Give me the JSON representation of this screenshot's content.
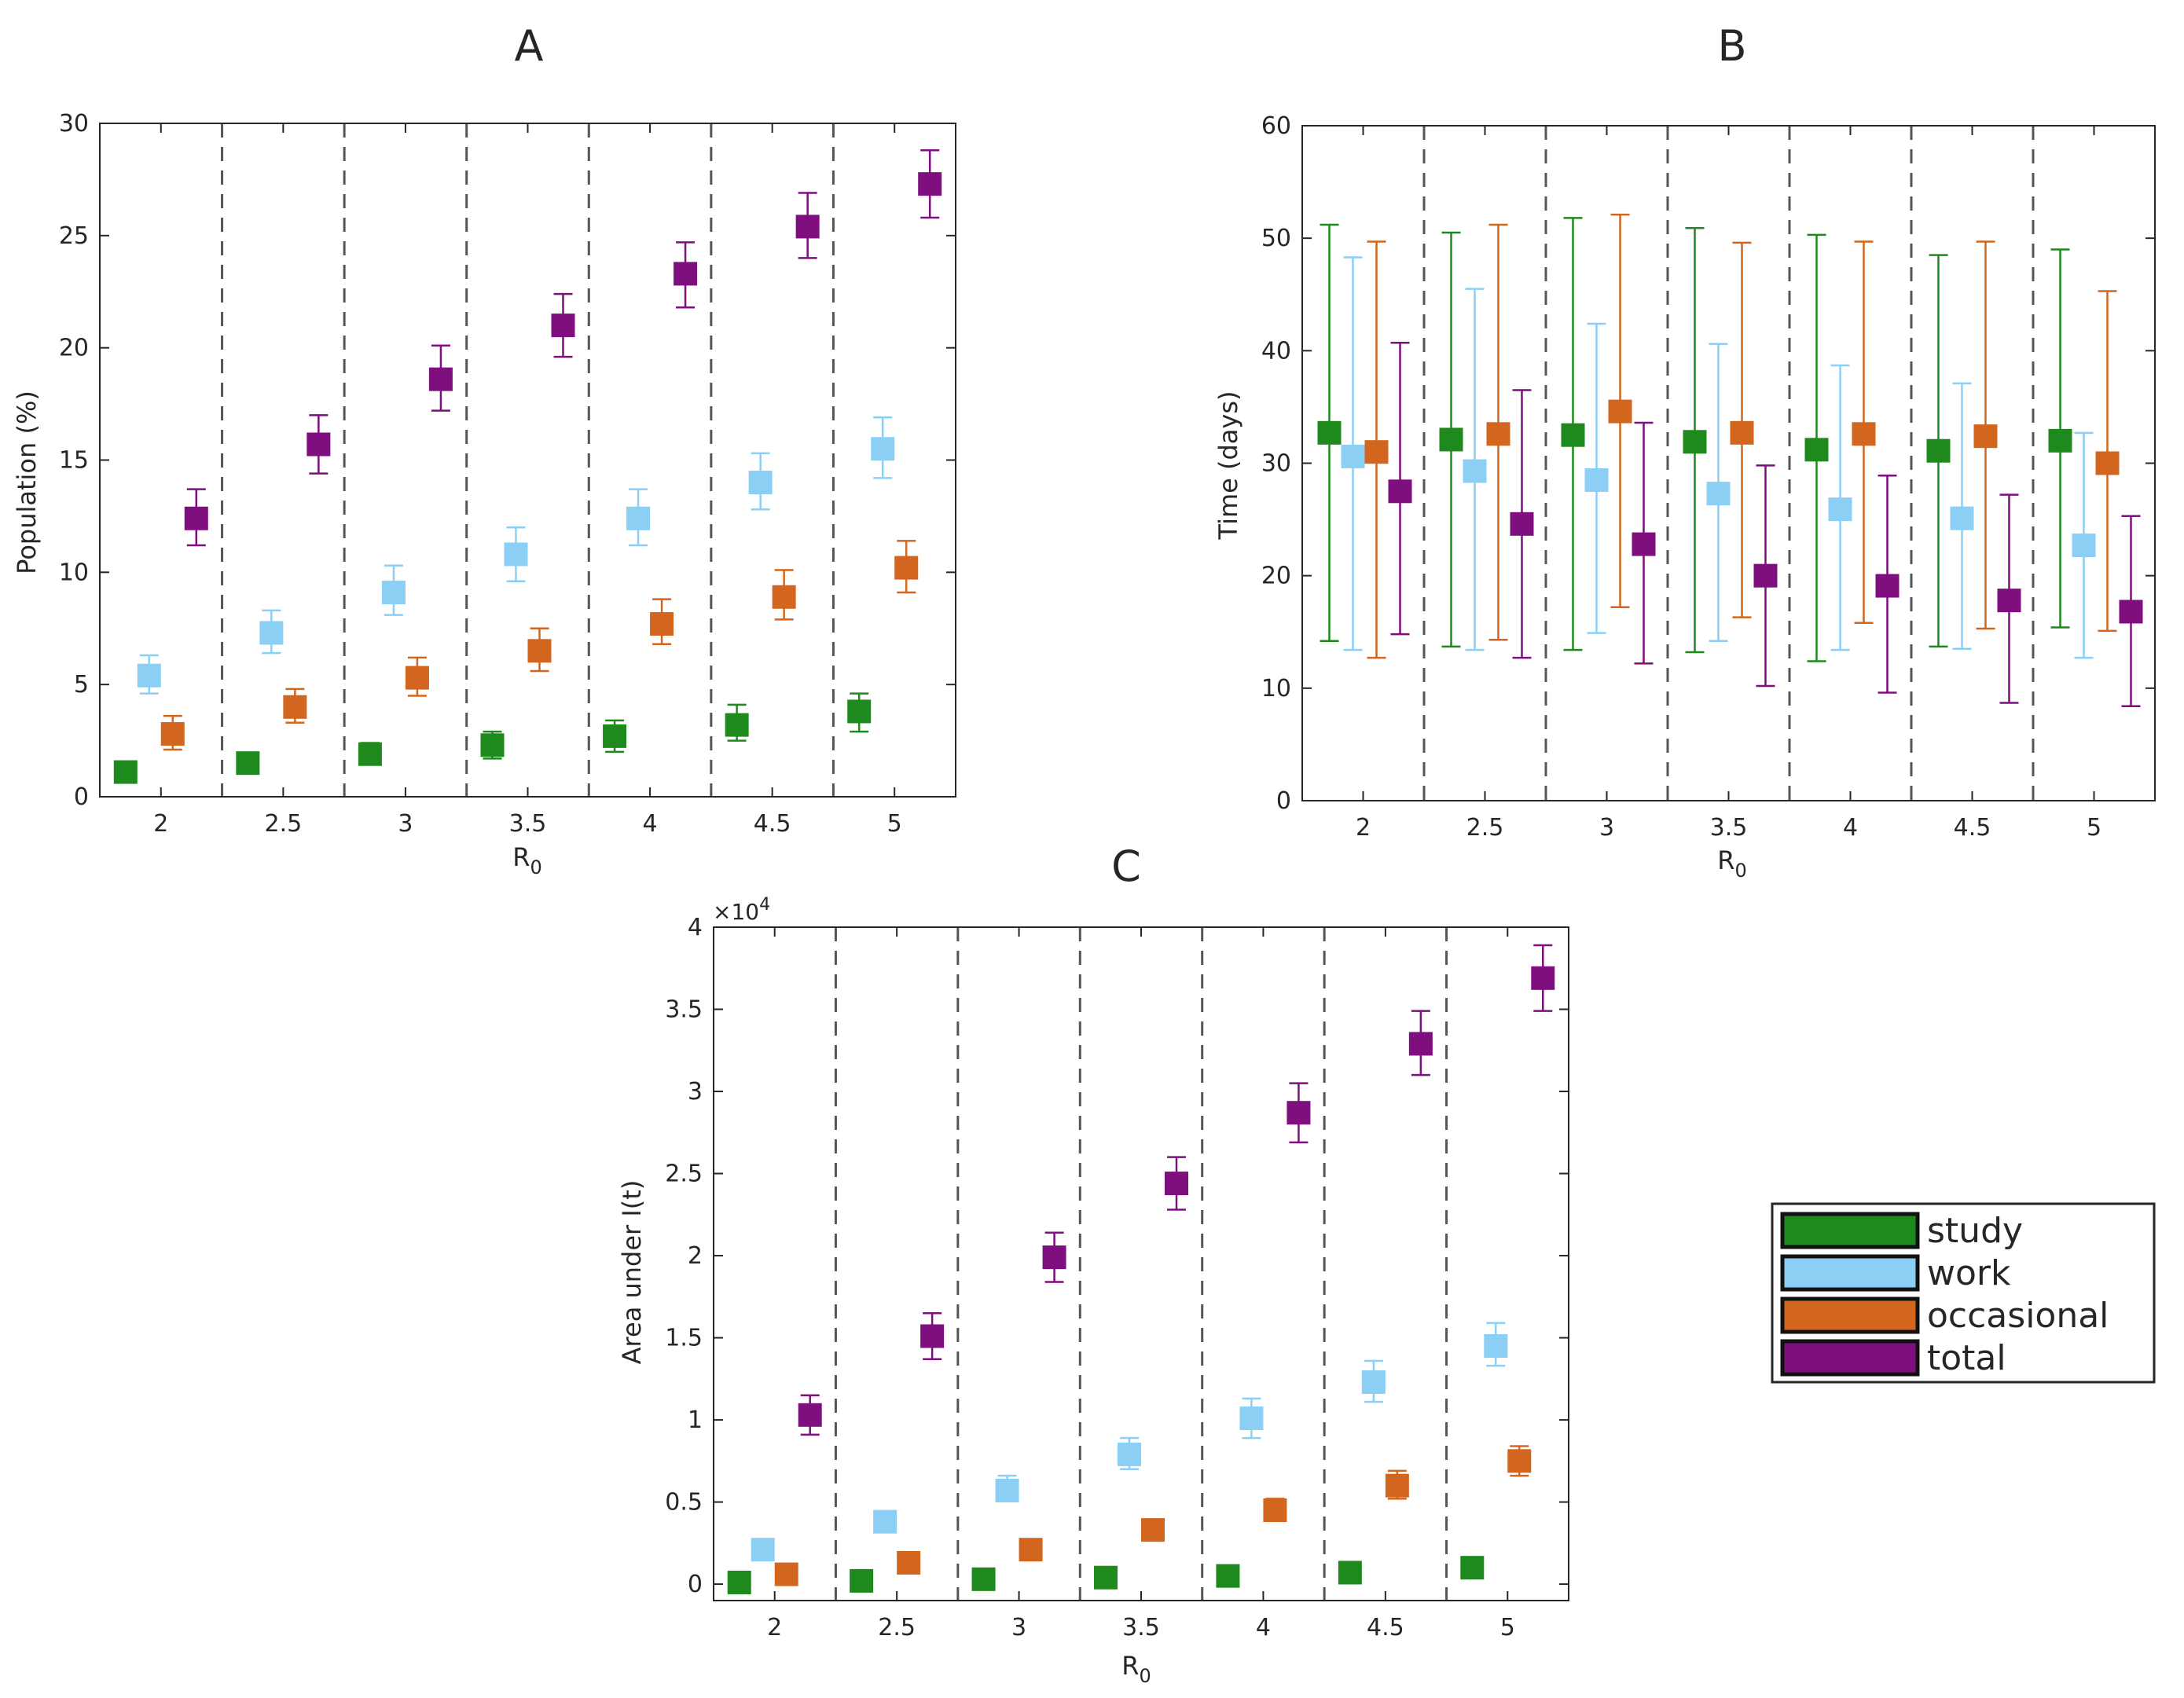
{
  "figure": {
    "legend": {
      "entries": [
        {
          "label": "study",
          "color": "#1e8a1e"
        },
        {
          "label": "work",
          "color": "#8ccff5"
        },
        {
          "label": "occasional",
          "color": "#d3661f"
        },
        {
          "label": "total",
          "color": "#7f0e7f"
        }
      ]
    }
  },
  "chart_data": [
    {
      "panel": "A",
      "type": "scatter",
      "title": "A",
      "xlabel": "R",
      "xlabel_subscript": "0",
      "ylabel": "Population (%)",
      "categories": [
        "2",
        "2.5",
        "3",
        "3.5",
        "4",
        "4.5",
        "5"
      ],
      "ylim": [
        0,
        30
      ],
      "yticks": [
        0,
        5,
        10,
        15,
        20,
        25,
        30
      ],
      "error_bars": true,
      "series": [
        {
          "name": "study",
          "color": "#1e8a1e",
          "values": [
            1.1,
            1.5,
            1.9,
            2.3,
            2.7,
            3.2,
            3.8
          ],
          "err_low": [
            1.0,
            1.3,
            1.6,
            1.7,
            2.0,
            2.5,
            2.9
          ],
          "err_high": [
            1.3,
            1.8,
            2.4,
            2.9,
            3.4,
            4.1,
            4.6
          ]
        },
        {
          "name": "work",
          "color": "#8ccff5",
          "values": [
            5.4,
            7.3,
            9.1,
            10.8,
            12.4,
            14.0,
            15.5
          ],
          "err_low": [
            4.6,
            6.4,
            8.1,
            9.6,
            11.2,
            12.8,
            14.2
          ],
          "err_high": [
            6.3,
            8.3,
            10.3,
            12.0,
            13.7,
            15.3,
            16.9
          ]
        },
        {
          "name": "occasional",
          "color": "#d3661f",
          "values": [
            2.8,
            4.0,
            5.3,
            6.5,
            7.7,
            8.9,
            10.2
          ],
          "err_low": [
            2.1,
            3.3,
            4.5,
            5.6,
            6.8,
            7.9,
            9.1
          ],
          "err_high": [
            3.6,
            4.8,
            6.2,
            7.5,
            8.8,
            10.1,
            11.4
          ]
        },
        {
          "name": "total",
          "color": "#7f0e7f",
          "values": [
            12.4,
            15.7,
            18.6,
            21.0,
            23.3,
            25.4,
            27.3
          ],
          "err_low": [
            11.2,
            14.4,
            17.2,
            19.6,
            21.8,
            24.0,
            25.8
          ],
          "err_high": [
            13.7,
            17.0,
            20.1,
            22.4,
            24.7,
            26.9,
            28.8
          ]
        }
      ]
    },
    {
      "panel": "B",
      "type": "scatter",
      "title": "B",
      "xlabel": "R",
      "xlabel_subscript": "0",
      "ylabel": "Time (days)",
      "categories": [
        "2",
        "2.5",
        "3",
        "3.5",
        "4",
        "4.5",
        "5"
      ],
      "ylim": [
        0,
        60
      ],
      "yticks": [
        0,
        10,
        20,
        30,
        40,
        50,
        60
      ],
      "error_bars": true,
      "series": [
        {
          "name": "study",
          "color": "#1e8a1e",
          "values": [
            32.7,
            32.1,
            32.5,
            31.9,
            31.2,
            31.1,
            32.0
          ],
          "err_low": [
            14.2,
            13.7,
            13.4,
            13.2,
            12.4,
            13.7,
            15.4
          ],
          "err_high": [
            51.2,
            50.5,
            51.8,
            50.9,
            50.3,
            48.5,
            49.0
          ]
        },
        {
          "name": "work",
          "color": "#8ccff5",
          "values": [
            30.6,
            29.3,
            28.5,
            27.3,
            25.9,
            25.1,
            22.7
          ],
          "err_low": [
            13.4,
            13.4,
            14.9,
            14.2,
            13.4,
            13.5,
            12.7
          ],
          "err_high": [
            48.3,
            45.5,
            42.4,
            40.6,
            38.7,
            37.1,
            32.7
          ]
        },
        {
          "name": "occasional",
          "color": "#d3661f",
          "values": [
            31.0,
            32.6,
            34.6,
            32.7,
            32.6,
            32.4,
            30.0
          ],
          "err_low": [
            12.7,
            14.3,
            17.2,
            16.3,
            15.8,
            15.3,
            15.1
          ],
          "err_high": [
            49.7,
            51.2,
            52.1,
            49.6,
            49.7,
            49.7,
            45.3
          ]
        },
        {
          "name": "total",
          "color": "#7f0e7f",
          "values": [
            27.5,
            24.6,
            22.8,
            20.0,
            19.1,
            17.8,
            16.8
          ],
          "err_low": [
            14.8,
            12.7,
            12.2,
            10.2,
            9.6,
            8.7,
            8.4
          ],
          "err_high": [
            40.7,
            36.5,
            33.6,
            29.8,
            28.9,
            27.2,
            25.3
          ]
        }
      ]
    },
    {
      "panel": "C",
      "type": "scatter",
      "title": "C",
      "xlabel": "R",
      "xlabel_subscript": "0",
      "ylabel": "Area under I(t)",
      "exponent_label": "×10",
      "exponent_power": "4",
      "categories": [
        "2",
        "2.5",
        "3",
        "3.5",
        "4",
        "4.5",
        "5"
      ],
      "ylim": [
        -0.1,
        4
      ],
      "yticks": [
        0,
        0.5,
        1,
        1.5,
        2,
        2.5,
        3,
        3.5,
        4
      ],
      "ytick_labels": [
        "0",
        "0.5",
        "1",
        "1.5",
        "2",
        "2.5",
        "3",
        "3.5",
        "4"
      ],
      "value_scale": 10000,
      "error_bars": true,
      "series": [
        {
          "name": "study",
          "color": "#1e8a1e",
          "values": [
            0.01,
            0.02,
            0.03,
            0.04,
            0.05,
            0.07,
            0.1
          ],
          "err_low": [
            0.005,
            0.012,
            0.02,
            0.03,
            0.04,
            0.05,
            0.08
          ],
          "err_high": [
            0.02,
            0.03,
            0.04,
            0.06,
            0.07,
            0.09,
            0.12
          ]
        },
        {
          "name": "work",
          "color": "#8ccff5",
          "values": [
            0.21,
            0.38,
            0.57,
            0.79,
            1.01,
            1.23,
            1.45
          ],
          "err_low": [
            0.18,
            0.33,
            0.51,
            0.7,
            0.89,
            1.11,
            1.33
          ],
          "err_high": [
            0.24,
            0.43,
            0.66,
            0.89,
            1.13,
            1.36,
            1.59
          ]
        },
        {
          "name": "occasional",
          "color": "#d3661f",
          "values": [
            0.06,
            0.13,
            0.21,
            0.33,
            0.45,
            0.6,
            0.75
          ],
          "err_low": [
            0.05,
            0.11,
            0.18,
            0.29,
            0.4,
            0.52,
            0.66
          ],
          "err_high": [
            0.07,
            0.15,
            0.24,
            0.37,
            0.52,
            0.69,
            0.84
          ]
        },
        {
          "name": "total",
          "color": "#7f0e7f",
          "values": [
            1.03,
            1.51,
            1.99,
            2.44,
            2.87,
            3.29,
            3.69
          ],
          "err_low": [
            0.91,
            1.37,
            1.84,
            2.28,
            2.69,
            3.1,
            3.49
          ],
          "err_high": [
            1.15,
            1.65,
            2.14,
            2.6,
            3.05,
            3.49,
            3.89
          ]
        }
      ]
    }
  ]
}
